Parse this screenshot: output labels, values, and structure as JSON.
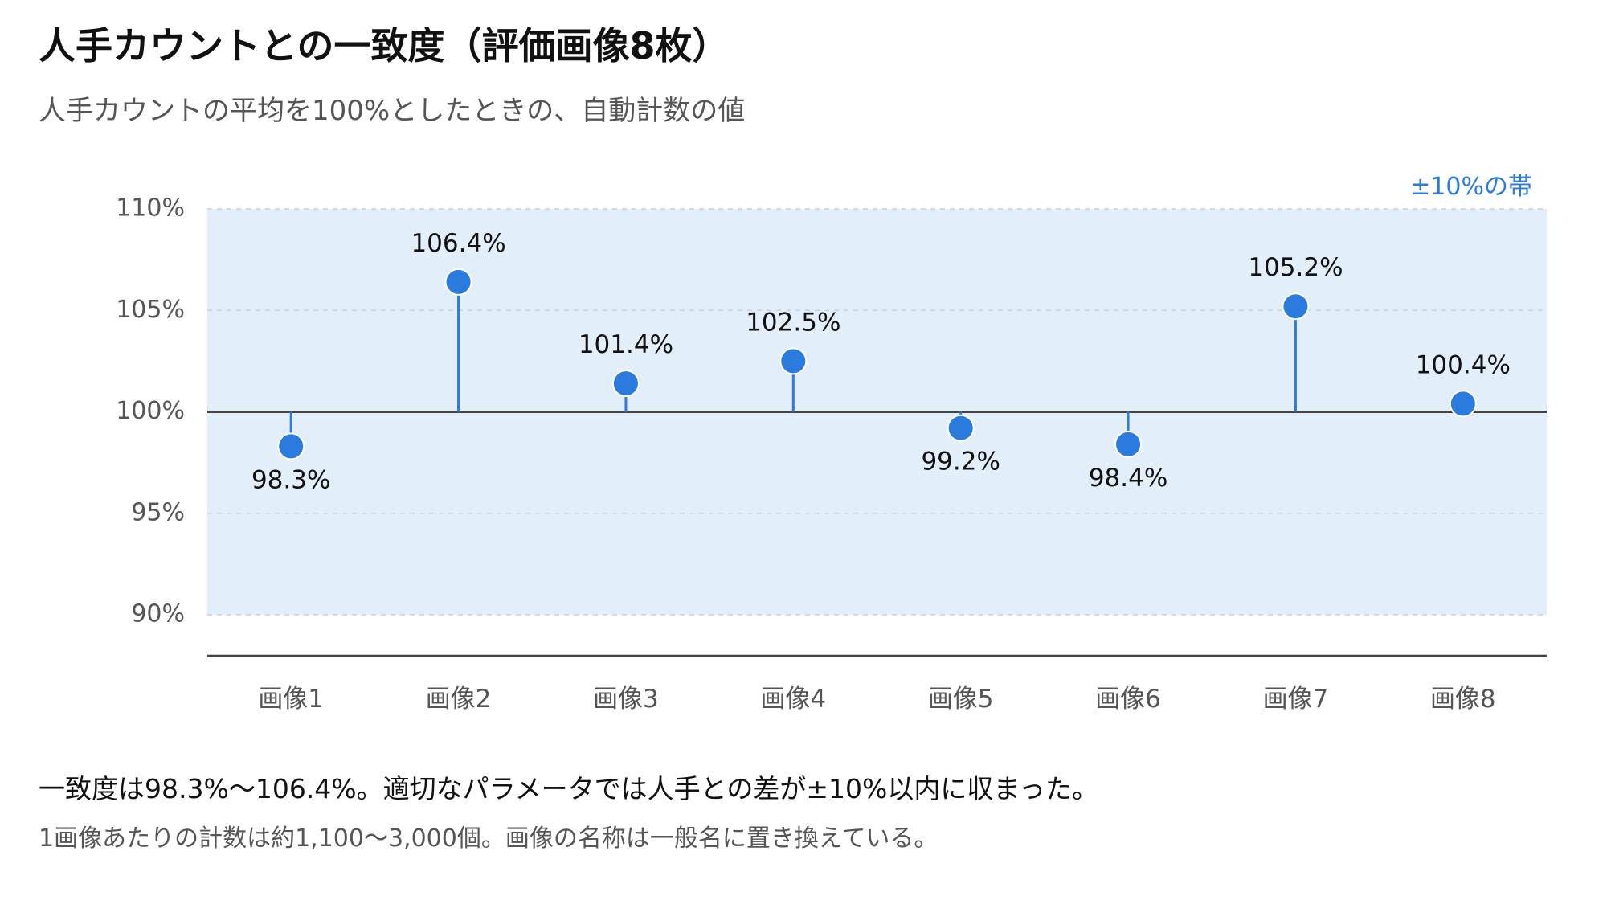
{
  "header": {
    "title": "人手カウントとの一致度（評価画像8枚）",
    "subtitle": "人手カウントの平均を100%としたときの、自動計数の値"
  },
  "colors": {
    "accent": "#2b7bde",
    "band": "#e3eefb",
    "baseline": "#444444",
    "grid": "#c5d3e4",
    "tick_text": "#555555"
  },
  "chart_data": {
    "type": "scatter",
    "style": "lollipop",
    "title": "人手カウントとの一致度（評価画像8枚）",
    "subtitle": "人手カウントの平均を100%としたときの、自動計数の値",
    "categories": [
      "画像1",
      "画像2",
      "画像3",
      "画像4",
      "画像5",
      "画像6",
      "画像7",
      "画像8"
    ],
    "values": [
      98.3,
      106.4,
      101.4,
      102.5,
      99.2,
      98.4,
      105.2,
      100.4
    ],
    "value_labels": [
      "98.3%",
      "106.4%",
      "101.4%",
      "102.5%",
      "99.2%",
      "98.4%",
      "105.2%",
      "100.4%"
    ],
    "baseline": 100,
    "band": {
      "low": 90,
      "high": 110,
      "label": "±10%の帯"
    },
    "yticks": [
      110,
      105,
      100,
      95,
      90
    ],
    "ytick_labels": [
      "110%",
      "105%",
      "100%",
      "95%",
      "90%"
    ],
    "ylim": [
      90,
      110
    ],
    "grid": true,
    "xlabel": "",
    "ylabel": ""
  },
  "footer": {
    "note": "一致度は98.3%〜106.4%。適切なパラメータでは人手との差が±10%以内に収まった。",
    "sub_note": "1画像あたりの計数は約1,100〜3,000個。画像の名称は一般名に置き換えている。"
  }
}
